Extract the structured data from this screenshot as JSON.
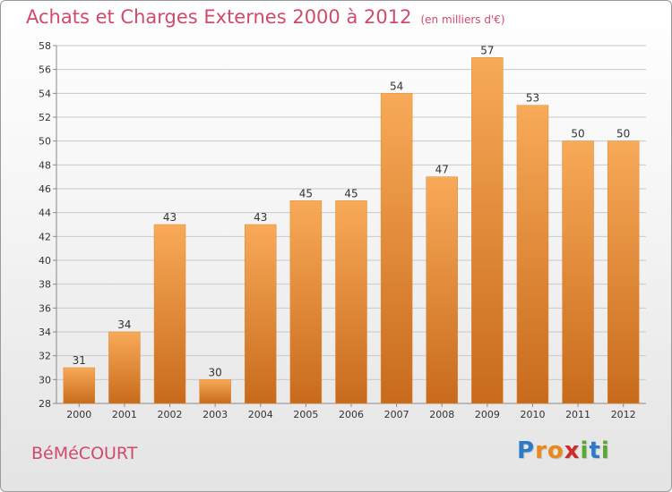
{
  "title": "Achats et Charges Externes 2000 à 2012",
  "subtitle": "(en milliers d'€)",
  "commune": "BéMéCOURT",
  "brand": {
    "letters": [
      "P",
      "r",
      "o",
      "x",
      "i",
      "t",
      "i"
    ],
    "colors": [
      "#2c7ac8",
      "#e88a1a",
      "#e88a1a",
      "#d02a2a",
      "#5aa832",
      "#2c7ac8",
      "#5aa832"
    ]
  },
  "colors": {
    "title": "#d24a6a",
    "bar_top": "#f8aa58",
    "bar_bottom": "#c86a1c",
    "grid": "#c8c8c8"
  },
  "chart_data": {
    "type": "bar",
    "categories": [
      "2000",
      "2001",
      "2002",
      "2003",
      "2004",
      "2005",
      "2006",
      "2007",
      "2008",
      "2009",
      "2010",
      "2011",
      "2012"
    ],
    "values": [
      31,
      34,
      43,
      30,
      43,
      45,
      45,
      54,
      47,
      57,
      53,
      50,
      50
    ],
    "yticks": [
      28,
      30,
      32,
      34,
      36,
      38,
      40,
      42,
      44,
      46,
      48,
      50,
      52,
      54,
      56,
      58
    ],
    "ylim": [
      28,
      58
    ],
    "grid": true,
    "legend": "none"
  }
}
